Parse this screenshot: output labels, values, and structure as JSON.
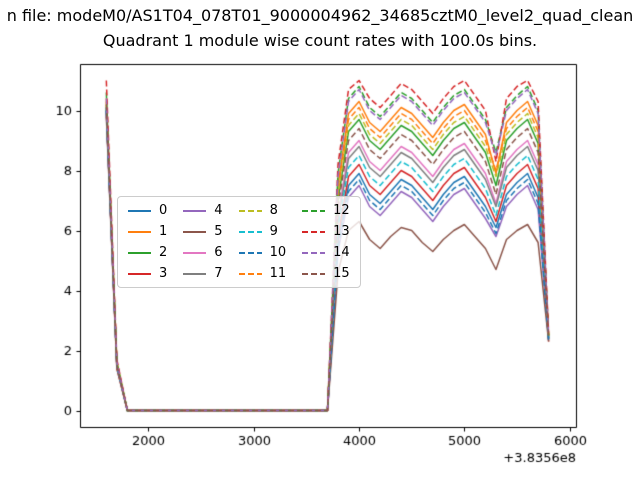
{
  "figure": {
    "suptitle": "n file: modeM0/AS1T04_078T01_9000004962_34685cztM0_level2_quad_clean",
    "title": "Quadrant 1 module wise count rates with 100.0s bins."
  },
  "axes": {
    "xlim": [
      1350,
      6060
    ],
    "ylim": [
      -0.55,
      11.55
    ],
    "x_ticks": [
      2000,
      3000,
      4000,
      5000,
      6000
    ],
    "y_ticks": [
      0,
      2,
      4,
      6,
      8,
      10
    ],
    "x_offset_label": "+3.8356e8",
    "grid": false,
    "legend_position": "center-left",
    "legend_columns": 4
  },
  "chart_data": {
    "type": "line",
    "title": "Quadrant 1 module wise count rates with 100.0s bins.",
    "xlabel": "",
    "ylabel": "",
    "x_offset": 383560000,
    "xlim": [
      1350,
      6060
    ],
    "ylim": [
      -0.55,
      11.55
    ],
    "x": [
      1600,
      1700,
      1800,
      1900,
      2000,
      2100,
      2200,
      2300,
      2400,
      2500,
      2600,
      2700,
      2800,
      2900,
      3000,
      3100,
      3200,
      3300,
      3400,
      3500,
      3600,
      3700,
      3800,
      3900,
      4000,
      4100,
      4200,
      4300,
      4400,
      4500,
      4600,
      4700,
      4800,
      4900,
      5000,
      5100,
      5200,
      5300,
      5400,
      5500,
      5600,
      5700,
      5800
    ],
    "series": [
      {
        "name": "0",
        "color": "#1f77b4",
        "dash": false,
        "values": [
          10.0,
          1.5,
          0,
          0,
          0,
          0,
          0,
          0,
          0,
          0,
          0,
          0,
          0,
          0,
          0,
          0,
          0,
          0,
          0,
          0,
          0,
          0,
          5.6,
          7.5,
          7.9,
          7.2,
          6.9,
          7.3,
          7.7,
          7.5,
          7.1,
          6.7,
          7.2,
          7.6,
          7.8,
          7.3,
          6.8,
          6.1,
          7.2,
          7.6,
          7.9,
          7.1,
          2.4
        ]
      },
      {
        "name": "1",
        "color": "#ff7f0e",
        "dash": false,
        "values": [
          10.3,
          1.6,
          0,
          0,
          0,
          0,
          0,
          0,
          0,
          0,
          0,
          0,
          0,
          0,
          0,
          0,
          0,
          0,
          0,
          0,
          0,
          0,
          7.5,
          9.9,
          10.3,
          9.6,
          9.3,
          9.7,
          10.1,
          9.9,
          9.5,
          9.1,
          9.6,
          10.0,
          10.2,
          9.7,
          9.2,
          7.9,
          9.6,
          10.0,
          10.3,
          9.5,
          2.5
        ]
      },
      {
        "name": "2",
        "color": "#2ca02c",
        "dash": false,
        "values": [
          10.1,
          1.5,
          0,
          0,
          0,
          0,
          0,
          0,
          0,
          0,
          0,
          0,
          0,
          0,
          0,
          0,
          0,
          0,
          0,
          0,
          0,
          0,
          7.0,
          9.3,
          9.7,
          9.0,
          8.7,
          9.1,
          9.5,
          9.3,
          8.9,
          8.5,
          9.0,
          9.4,
          9.6,
          9.1,
          8.6,
          7.5,
          9.0,
          9.4,
          9.7,
          8.9,
          2.4
        ]
      },
      {
        "name": "3",
        "color": "#d62728",
        "dash": false,
        "values": [
          10.0,
          1.4,
          0,
          0,
          0,
          0,
          0,
          0,
          0,
          0,
          0,
          0,
          0,
          0,
          0,
          0,
          0,
          0,
          0,
          0,
          0,
          0,
          5.8,
          7.8,
          8.2,
          7.5,
          7.2,
          7.6,
          8.0,
          7.8,
          7.4,
          7.0,
          7.5,
          7.9,
          8.1,
          7.6,
          7.1,
          6.3,
          7.5,
          7.9,
          8.2,
          7.4,
          2.3
        ]
      },
      {
        "name": "4",
        "color": "#9467bd",
        "dash": false,
        "values": [
          9.9,
          1.5,
          0,
          0,
          0,
          0,
          0,
          0,
          0,
          0,
          0,
          0,
          0,
          0,
          0,
          0,
          0,
          0,
          0,
          0,
          0,
          0,
          5.3,
          7.1,
          7.5,
          6.8,
          6.5,
          6.9,
          7.3,
          7.1,
          6.7,
          6.3,
          6.8,
          7.2,
          7.4,
          6.9,
          6.4,
          5.8,
          6.8,
          7.2,
          7.5,
          6.7,
          2.4
        ]
      },
      {
        "name": "5",
        "color": "#8c564b",
        "dash": false,
        "values": [
          9.8,
          1.4,
          0,
          0,
          0,
          0,
          0,
          0,
          0,
          0,
          0,
          0,
          0,
          0,
          0,
          0,
          0,
          0,
          0,
          0,
          0,
          0,
          4.6,
          6.0,
          6.3,
          5.7,
          5.4,
          5.8,
          6.1,
          6.0,
          5.6,
          5.3,
          5.7,
          6.0,
          6.2,
          5.8,
          5.4,
          4.7,
          5.7,
          6.0,
          6.2,
          5.6,
          2.3
        ]
      },
      {
        "name": "6",
        "color": "#e377c2",
        "dash": false,
        "values": [
          10.1,
          1.5,
          0,
          0,
          0,
          0,
          0,
          0,
          0,
          0,
          0,
          0,
          0,
          0,
          0,
          0,
          0,
          0,
          0,
          0,
          0,
          0,
          6.5,
          8.6,
          9.0,
          8.3,
          8.0,
          8.4,
          8.8,
          8.6,
          8.2,
          7.8,
          8.3,
          8.7,
          8.9,
          8.4,
          7.9,
          6.9,
          8.3,
          8.7,
          9.0,
          8.2,
          2.4
        ]
      },
      {
        "name": "7",
        "color": "#7f7f7f",
        "dash": false,
        "values": [
          10.0,
          1.5,
          0,
          0,
          0,
          0,
          0,
          0,
          0,
          0,
          0,
          0,
          0,
          0,
          0,
          0,
          0,
          0,
          0,
          0,
          0,
          0,
          6.3,
          8.4,
          8.8,
          8.1,
          7.8,
          8.2,
          8.6,
          8.4,
          8.0,
          7.6,
          8.1,
          8.5,
          8.7,
          8.2,
          7.7,
          6.8,
          8.1,
          8.5,
          8.8,
          8.0,
          2.4
        ]
      },
      {
        "name": "8",
        "color": "#bcbd22",
        "dash": true,
        "values": [
          10.2,
          1.6,
          0,
          0,
          0,
          0,
          0,
          0,
          0,
          0,
          0,
          0,
          0,
          0,
          0,
          0,
          0,
          0,
          0,
          0,
          0,
          0,
          7.2,
          9.5,
          9.9,
          9.2,
          8.9,
          9.3,
          9.7,
          9.5,
          9.1,
          8.7,
          9.2,
          9.6,
          9.8,
          9.3,
          8.8,
          7.8,
          9.2,
          9.6,
          9.9,
          9.1,
          2.5
        ]
      },
      {
        "name": "9",
        "color": "#17becf",
        "dash": true,
        "values": [
          10.1,
          1.5,
          0,
          0,
          0,
          0,
          0,
          0,
          0,
          0,
          0,
          0,
          0,
          0,
          0,
          0,
          0,
          0,
          0,
          0,
          0,
          0,
          6.1,
          8.1,
          8.5,
          7.8,
          7.5,
          7.9,
          8.3,
          8.1,
          7.7,
          7.3,
          7.8,
          8.2,
          8.4,
          7.9,
          7.4,
          6.5,
          7.8,
          8.2,
          8.5,
          7.7,
          2.4
        ]
      },
      {
        "name": "10",
        "color": "#1f77b4",
        "dash": true,
        "values": [
          10.0,
          1.5,
          0,
          0,
          0,
          0,
          0,
          0,
          0,
          0,
          0,
          0,
          0,
          0,
          0,
          0,
          0,
          0,
          0,
          0,
          0,
          0,
          5.4,
          7.3,
          7.7,
          7.0,
          6.7,
          7.1,
          7.5,
          7.3,
          6.9,
          6.5,
          7.0,
          7.4,
          7.6,
          7.1,
          6.6,
          5.9,
          7.0,
          7.4,
          7.7,
          6.9,
          2.3
        ]
      },
      {
        "name": "11",
        "color": "#ff7f0e",
        "dash": true,
        "values": [
          10.4,
          1.6,
          0,
          0,
          0,
          0,
          0,
          0,
          0,
          0,
          0,
          0,
          0,
          0,
          0,
          0,
          0,
          0,
          0,
          0,
          0,
          0,
          7.4,
          9.7,
          10.1,
          9.4,
          9.1,
          9.5,
          9.9,
          9.7,
          9.3,
          8.9,
          9.4,
          9.8,
          10.0,
          9.5,
          9.0,
          8.0,
          9.4,
          9.8,
          10.1,
          9.3,
          2.5
        ]
      },
      {
        "name": "12",
        "color": "#2ca02c",
        "dash": true,
        "values": [
          10.6,
          1.6,
          0,
          0,
          0,
          0,
          0,
          0,
          0,
          0,
          0,
          0,
          0,
          0,
          0,
          0,
          0,
          0,
          0,
          0,
          0,
          0,
          7.9,
          10.4,
          10.8,
          10.1,
          9.8,
          10.2,
          10.6,
          10.4,
          10.0,
          9.6,
          10.1,
          10.5,
          10.7,
          10.2,
          9.7,
          8.6,
          10.1,
          10.5,
          10.8,
          10.0,
          2.5
        ]
      },
      {
        "name": "13",
        "color": "#d62728",
        "dash": true,
        "values": [
          11.0,
          1.7,
          0,
          0,
          0,
          0,
          0,
          0,
          0,
          0,
          0,
          0,
          0,
          0,
          0,
          0,
          0,
          0,
          0,
          0,
          0,
          0,
          8.2,
          10.7,
          11.0,
          10.4,
          10.1,
          10.5,
          10.9,
          10.7,
          10.3,
          9.9,
          10.4,
          10.8,
          11.0,
          10.5,
          10.0,
          8.3,
          10.4,
          10.8,
          11.0,
          10.3,
          2.6
        ]
      },
      {
        "name": "14",
        "color": "#9467bd",
        "dash": true,
        "values": [
          10.4,
          1.6,
          0,
          0,
          0,
          0,
          0,
          0,
          0,
          0,
          0,
          0,
          0,
          0,
          0,
          0,
          0,
          0,
          0,
          0,
          0,
          0,
          7.8,
          10.3,
          10.7,
          10.0,
          9.7,
          10.1,
          10.5,
          10.3,
          9.9,
          9.5,
          10.0,
          10.4,
          10.6,
          10.1,
          9.6,
          8.5,
          10.0,
          10.4,
          10.7,
          9.9,
          2.5
        ]
      },
      {
        "name": "15",
        "color": "#8c564b",
        "dash": true,
        "values": [
          10.2,
          1.5,
          0,
          0,
          0,
          0,
          0,
          0,
          0,
          0,
          0,
          0,
          0,
          0,
          0,
          0,
          0,
          0,
          0,
          0,
          0,
          0,
          6.8,
          9.0,
          9.4,
          8.7,
          8.4,
          8.8,
          9.2,
          9.0,
          8.6,
          8.2,
          8.7,
          9.1,
          9.3,
          8.8,
          8.3,
          7.2,
          8.7,
          9.1,
          9.4,
          8.6,
          2.4
        ]
      }
    ]
  }
}
